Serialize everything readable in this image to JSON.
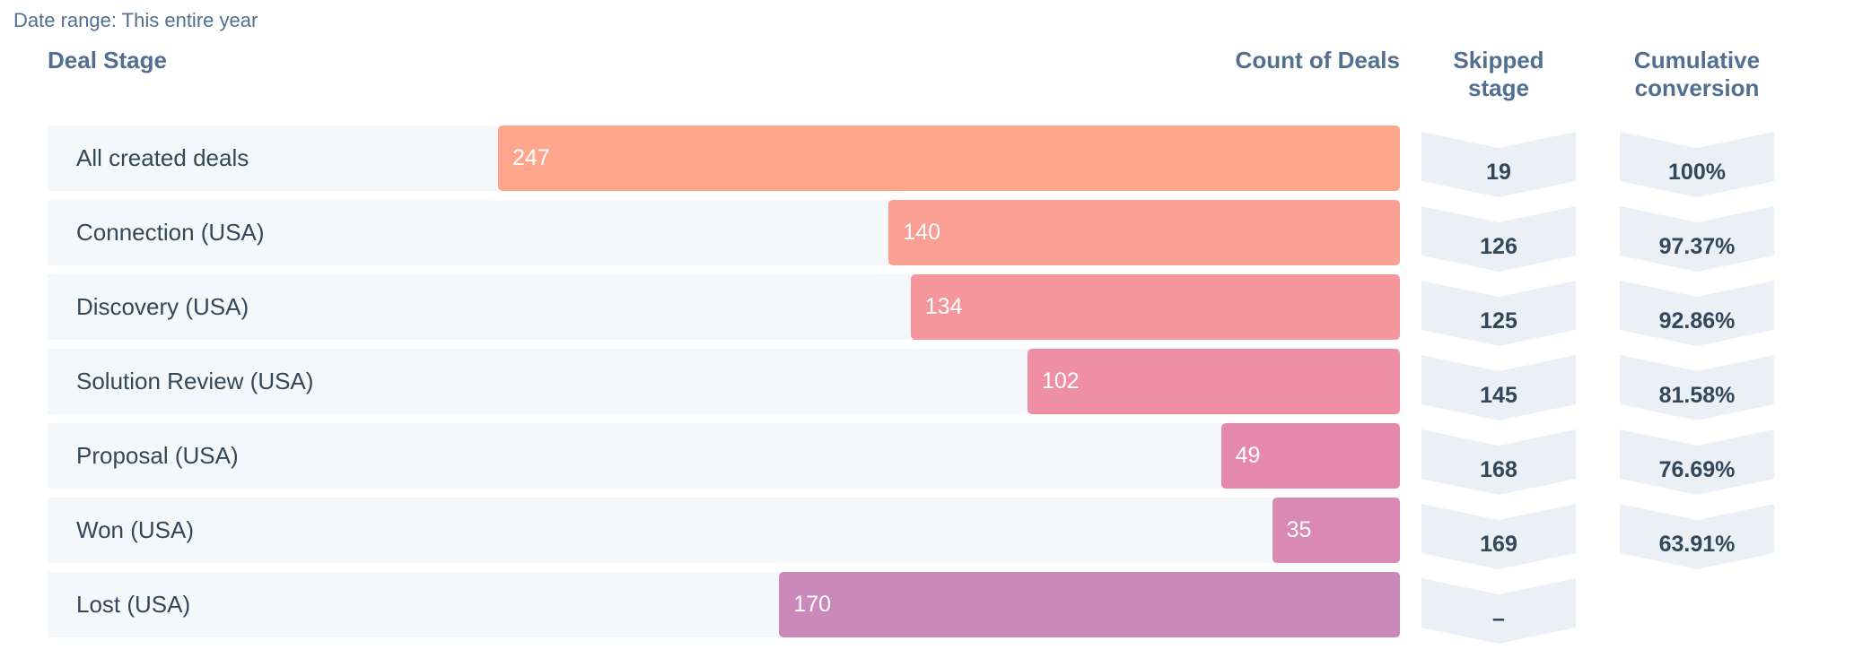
{
  "date_range": "Date range: This entire year",
  "headers": {
    "stage": "Deal Stage",
    "count": "Count of Deals",
    "skipped": [
      "Skipped",
      "stage"
    ],
    "cumulative": [
      "Cumulative",
      "conversion"
    ]
  },
  "chart_data": {
    "type": "bar",
    "orientation": "horizontal",
    "categories": [
      "All created deals",
      "Connection (USA)",
      "Discovery (USA)",
      "Solution Review (USA)",
      "Proposal (USA)",
      "Won (USA)",
      "Lost (USA)"
    ],
    "values": [
      247,
      140,
      134,
      102,
      49,
      35,
      170
    ],
    "value_labels": [
      "247",
      "140",
      "134",
      "102",
      "49",
      "35",
      "170"
    ],
    "skipped_stage": [
      "19",
      "126",
      "125",
      "145",
      "168",
      "169",
      "–"
    ],
    "cumulative_conversion": [
      "100%",
      "97.37%",
      "92.86%",
      "81.58%",
      "76.69%",
      "63.91%",
      ""
    ],
    "colors": [
      "#ffa58b",
      "#fb9e94",
      "#f5969c",
      "#ee8fa5",
      "#e58aad",
      "#da88b4",
      "#cb88ba"
    ],
    "xlim": [
      0,
      247
    ],
    "grid": false
  }
}
